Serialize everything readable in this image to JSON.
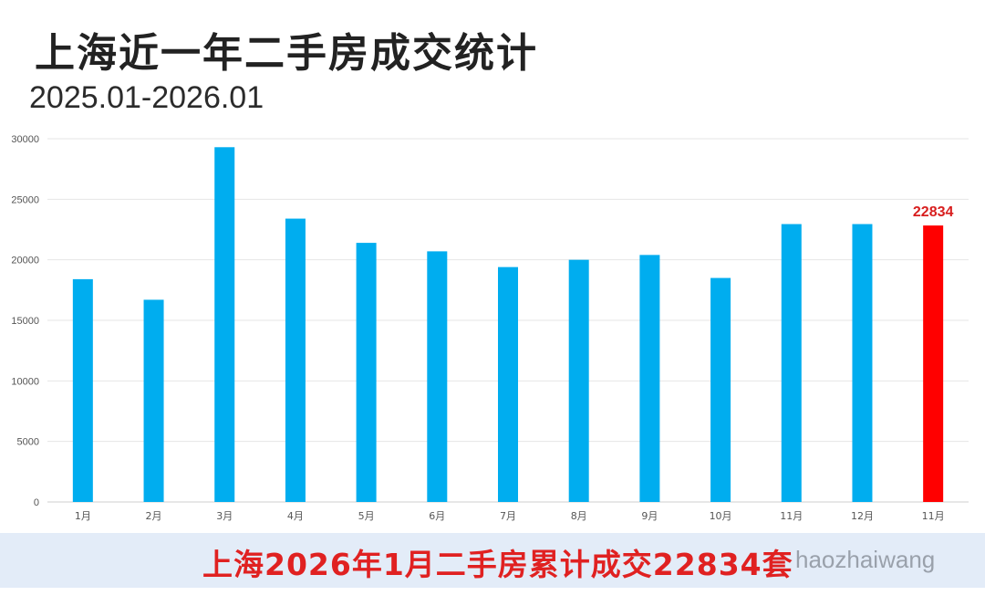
{
  "title": "上海近一年二手房成交统计",
  "subtitle": "2025.01-2026.01",
  "footer": {
    "text": "上海2026年1月二手房累计成交22834套",
    "watermark": "haozhaiwang"
  },
  "colors": {
    "bar": "#00adef",
    "highlight": "#ff0000",
    "highlight_label": "#d81e1e",
    "grid": "#e6e6e6",
    "axis_text": "#555555"
  },
  "chart_data": {
    "type": "bar",
    "categories": [
      "1月",
      "2月",
      "3月",
      "4月",
      "5月",
      "6月",
      "7月",
      "8月",
      "9月",
      "10月",
      "11月",
      "12月",
      "11月"
    ],
    "values": [
      18400,
      16700,
      29300,
      23400,
      21400,
      20700,
      19400,
      20000,
      20400,
      18500,
      22950,
      22950,
      22834
    ],
    "highlight_index": 12,
    "highlight_label": "22834",
    "ylim": [
      0,
      30000
    ],
    "yticks": [
      0,
      5000,
      10000,
      15000,
      20000,
      25000,
      30000
    ],
    "grid": true,
    "legend": "none"
  }
}
